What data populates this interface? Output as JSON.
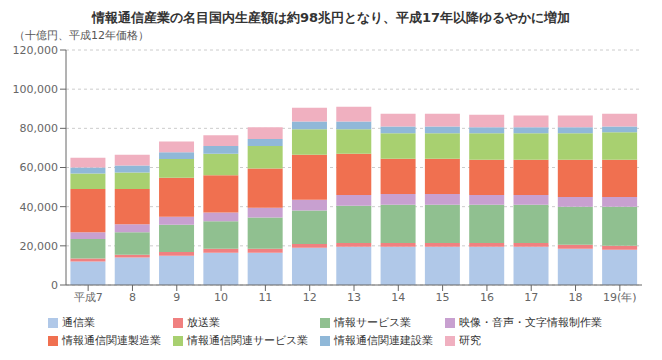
{
  "chart_data": {
    "type": "bar",
    "title": "情報通信産業の名目国内生産額は約98兆円となり、平成17年以降ゆるやかに増加",
    "y_label": "（十億円、平成12年価格）",
    "categories": [
      "平成7",
      "8",
      "9",
      "10",
      "11",
      "12",
      "13",
      "14",
      "15",
      "16",
      "17",
      "18",
      "19(年)"
    ],
    "stacked": true,
    "grid": true,
    "legend": "bottom",
    "ylim": [
      0,
      120000
    ],
    "yticks": [
      0,
      {
        "value": 20000,
        "label": "20,000"
      },
      {
        "value": 40000,
        "label": "40,000"
      },
      {
        "value": 60000,
        "label": "60,000"
      },
      {
        "value": 80000,
        "label": "80,000"
      },
      {
        "value": 100000,
        "label": "100,000"
      },
      {
        "value": 120000,
        "label": "120,000"
      }
    ],
    "series": [
      {
        "name": "通信業",
        "color": "#b0c8e8",
        "values": [
          12000,
          14000,
          15000,
          16500,
          16500,
          19000,
          19500,
          19500,
          19500,
          19500,
          19500,
          18500,
          18000
        ]
      },
      {
        "name": "放送業",
        "color": "#f08080",
        "values": [
          1500,
          1500,
          1800,
          2000,
          2000,
          2000,
          2000,
          2000,
          2000,
          2000,
          2000,
          2000,
          2000
        ]
      },
      {
        "name": "情報サービス業",
        "color": "#90c090",
        "values": [
          10000,
          11500,
          14000,
          14000,
          16000,
          17000,
          19000,
          19500,
          19500,
          19500,
          19500,
          19500,
          20000
        ]
      },
      {
        "name": "映像・音声・文字情報制作業",
        "color": "#c8a0d0",
        "values": [
          3500,
          4000,
          4000,
          4500,
          5000,
          5500,
          5500,
          5500,
          5500,
          5000,
          5000,
          5000,
          5000
        ]
      },
      {
        "name": "情報通信関連製造業",
        "color": "#f07050",
        "values": [
          22000,
          18000,
          20000,
          19000,
          20000,
          23000,
          21000,
          18000,
          18000,
          18000,
          18000,
          19000,
          19000
        ]
      },
      {
        "name": "情報通信関連サービス業",
        "color": "#a8d070",
        "values": [
          8000,
          8500,
          9500,
          11000,
          11500,
          13000,
          12500,
          13000,
          13000,
          13500,
          13500,
          13500,
          14000
        ]
      },
      {
        "name": "情報通信関連建設業",
        "color": "#90b8d8",
        "values": [
          3000,
          3500,
          3500,
          4000,
          3500,
          4000,
          4000,
          3500,
          3500,
          3000,
          3000,
          3000,
          3000
        ]
      },
      {
        "name": "研究",
        "color": "#f0b0c0",
        "values": [
          5000,
          5500,
          5500,
          5500,
          6000,
          7000,
          7500,
          6500,
          6500,
          6500,
          6000,
          6000,
          6500
        ]
      }
    ]
  }
}
